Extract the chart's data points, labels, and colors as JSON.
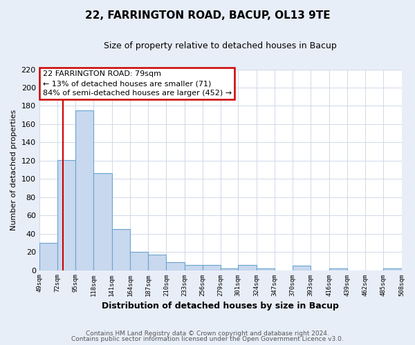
{
  "title": "22, FARRINGTON ROAD, BACUP, OL13 9TE",
  "subtitle": "Size of property relative to detached houses in Bacup",
  "xlabel": "Distribution of detached houses by size in Bacup",
  "ylabel": "Number of detached properties",
  "bar_left_edges": [
    49,
    72,
    95,
    118,
    141,
    164,
    187,
    210,
    233,
    256,
    279,
    301,
    324,
    347,
    370,
    393,
    416,
    439,
    462,
    485
  ],
  "bar_heights": [
    30,
    121,
    175,
    106,
    45,
    20,
    17,
    9,
    6,
    6,
    2,
    6,
    2,
    0,
    5,
    0,
    2,
    0,
    0,
    2
  ],
  "bin_width": 23,
  "bar_color": "#c8d8ee",
  "bar_edge_color": "#6ba3d0",
  "tick_labels": [
    "49sqm",
    "72sqm",
    "95sqm",
    "118sqm",
    "141sqm",
    "164sqm",
    "187sqm",
    "210sqm",
    "233sqm",
    "256sqm",
    "279sqm",
    "301sqm",
    "324sqm",
    "347sqm",
    "370sqm",
    "393sqm",
    "416sqm",
    "439sqm",
    "462sqm",
    "485sqm",
    "508sqm"
  ],
  "property_line_x": 79,
  "property_line_color": "#cc0000",
  "annotation_title": "22 FARRINGTON ROAD: 79sqm",
  "annotation_line1": "← 13% of detached houses are smaller (71)",
  "annotation_line2": "84% of semi-detached houses are larger (452) →",
  "ylim": [
    0,
    220
  ],
  "yticks": [
    0,
    20,
    40,
    60,
    80,
    100,
    120,
    140,
    160,
    180,
    200,
    220
  ],
  "footer1": "Contains HM Land Registry data © Crown copyright and database right 2024.",
  "footer2": "Contains public sector information licensed under the Open Government Licence v3.0.",
  "plot_bg_color": "#ffffff",
  "fig_bg_color": "#e8eef8",
  "grid_color": "#d0d8e8"
}
